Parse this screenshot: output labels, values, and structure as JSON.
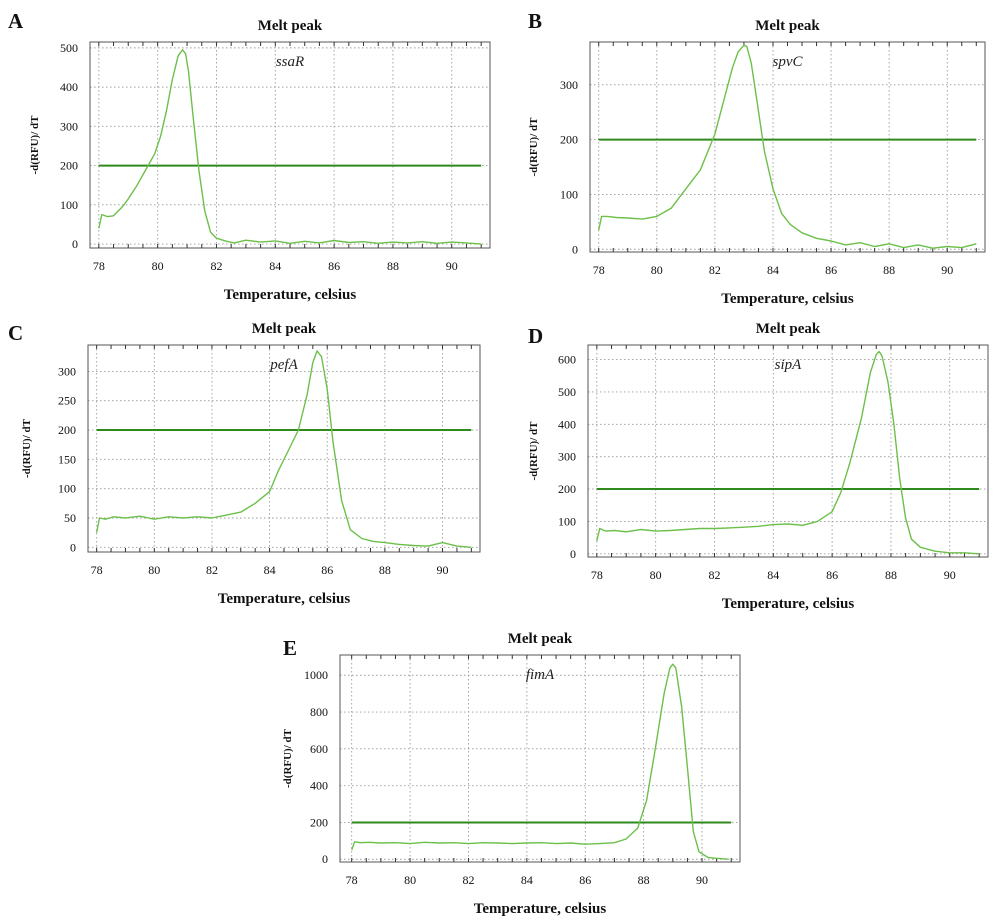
{
  "colors": {
    "melt_curve": "#6cc04a",
    "threshold": "#2f8a1e",
    "grid": "#9a9a9a",
    "frame": "#555555"
  },
  "chart_data": [
    {
      "panel": "A",
      "type": "line",
      "title": "Melt peak",
      "annotation": "ssaR",
      "xlabel": "Temperature, celsius",
      "ylabel": "-d(RFU)/ dT",
      "xlim": [
        77.7,
        91.3
      ],
      "ylim": [
        -10,
        515
      ],
      "xticks": [
        78,
        80,
        82,
        84,
        86,
        88,
        90
      ],
      "yticks": [
        0,
        100,
        200,
        300,
        400,
        500
      ],
      "grid": true,
      "threshold": 200,
      "x": [
        78.0,
        78.1,
        78.3,
        78.5,
        78.8,
        79.0,
        79.3,
        79.6,
        79.9,
        80.1,
        80.3,
        80.5,
        80.7,
        80.85,
        80.95,
        81.05,
        81.2,
        81.4,
        81.6,
        81.8,
        82.0,
        82.3,
        82.6,
        83.0,
        83.5,
        84.0,
        84.5,
        85.0,
        85.5,
        86.0,
        86.5,
        87.0,
        87.5,
        88.0,
        88.5,
        89.0,
        89.5,
        90.0,
        90.5,
        91.0
      ],
      "values": [
        40,
        75,
        70,
        72,
        95,
        115,
        150,
        190,
        230,
        275,
        340,
        420,
        480,
        495,
        485,
        440,
        330,
        190,
        85,
        30,
        15,
        8,
        3,
        10,
        5,
        8,
        2,
        7,
        3,
        9,
        4,
        6,
        2,
        5,
        3,
        6,
        2,
        5,
        3,
        0
      ]
    },
    {
      "panel": "B",
      "type": "line",
      "title": "Melt peak",
      "annotation": "spvC",
      "xlabel": "Temperature, celsius",
      "ylabel": "-d(RFU)/ dT",
      "xlim": [
        77.7,
        91.3
      ],
      "ylim": [
        -5,
        378
      ],
      "xticks": [
        78,
        80,
        82,
        84,
        86,
        88,
        90
      ],
      "yticks": [
        0,
        100,
        200,
        300
      ],
      "grid": true,
      "threshold": 200,
      "x": [
        78.0,
        78.1,
        78.3,
        78.6,
        79.0,
        79.5,
        80.0,
        80.5,
        81.0,
        81.5,
        82.0,
        82.3,
        82.6,
        82.8,
        83.0,
        83.1,
        83.25,
        83.45,
        83.7,
        84.0,
        84.3,
        84.6,
        85.0,
        85.5,
        86.0,
        86.5,
        87.0,
        87.5,
        88.0,
        88.5,
        89.0,
        89.5,
        90.0,
        90.5,
        91.0
      ],
      "values": [
        35,
        60,
        60,
        58,
        57,
        55,
        60,
        75,
        110,
        145,
        210,
        270,
        330,
        360,
        372,
        370,
        340,
        270,
        180,
        110,
        65,
        45,
        30,
        20,
        15,
        8,
        12,
        5,
        10,
        3,
        8,
        2,
        5,
        3,
        10
      ]
    },
    {
      "panel": "C",
      "type": "line",
      "title": "Melt peak",
      "annotation": "pefA",
      "xlabel": "Temperature, celsius",
      "ylabel": "-d(RFU)/ dT",
      "xlim": [
        77.7,
        91.3
      ],
      "ylim": [
        -8,
        345
      ],
      "xticks": [
        78,
        80,
        82,
        84,
        86,
        88,
        90
      ],
      "yticks": [
        0,
        50,
        100,
        150,
        200,
        250,
        300
      ],
      "grid": true,
      "threshold": 200,
      "x": [
        78.0,
        78.1,
        78.3,
        78.6,
        79.0,
        79.5,
        80.0,
        80.5,
        81.0,
        81.5,
        82.0,
        82.5,
        83.0,
        83.5,
        84.0,
        84.3,
        84.6,
        85.0,
        85.3,
        85.5,
        85.65,
        85.8,
        86.0,
        86.2,
        86.5,
        86.8,
        87.2,
        87.6,
        88.0,
        88.5,
        89.0,
        89.5,
        90.0,
        90.5,
        91.0
      ],
      "values": [
        25,
        50,
        48,
        52,
        50,
        53,
        48,
        52,
        50,
        52,
        50,
        55,
        60,
        75,
        95,
        130,
        160,
        200,
        260,
        315,
        335,
        325,
        270,
        180,
        80,
        30,
        15,
        10,
        8,
        5,
        3,
        2,
        8,
        2,
        0
      ]
    },
    {
      "panel": "D",
      "type": "line",
      "title": "Melt peak",
      "annotation": "sipA",
      "xlabel": "Temperature, celsius",
      "ylabel": "-d(RFU)/ dT",
      "xlim": [
        77.7,
        91.3
      ],
      "ylim": [
        -10,
        645
      ],
      "xticks": [
        78,
        80,
        82,
        84,
        86,
        88,
        90
      ],
      "yticks": [
        0,
        100,
        200,
        300,
        400,
        500,
        600
      ],
      "grid": true,
      "threshold": 200,
      "x": [
        78.0,
        78.1,
        78.3,
        78.6,
        79.0,
        79.5,
        80.0,
        80.5,
        81.0,
        81.5,
        82.0,
        82.5,
        83.0,
        83.5,
        84.0,
        84.5,
        85.0,
        85.5,
        86.0,
        86.3,
        86.6,
        87.0,
        87.3,
        87.5,
        87.6,
        87.7,
        87.9,
        88.1,
        88.3,
        88.5,
        88.7,
        89.0,
        89.5,
        90.0,
        90.5,
        91.0
      ],
      "values": [
        40,
        78,
        70,
        72,
        68,
        75,
        70,
        72,
        75,
        78,
        78,
        80,
        82,
        85,
        90,
        92,
        88,
        100,
        130,
        190,
        280,
        420,
        560,
        615,
        625,
        610,
        530,
        400,
        230,
        110,
        45,
        20,
        8,
        3,
        3,
        0
      ]
    },
    {
      "panel": "E",
      "type": "line",
      "title": "Melt peak",
      "annotation": "fimA",
      "xlabel": "Temperature, celsius",
      "ylabel": "-d(RFU)/ dT",
      "xlim": [
        77.6,
        91.3
      ],
      "ylim": [
        -15,
        1110
      ],
      "xticks": [
        78,
        80,
        82,
        84,
        86,
        88,
        90
      ],
      "yticks": [
        0,
        200,
        400,
        600,
        800,
        1000
      ],
      "grid": true,
      "threshold": 200,
      "x": [
        78.0,
        78.1,
        78.3,
        78.6,
        79.0,
        79.5,
        80.0,
        80.5,
        81.0,
        81.5,
        82.0,
        82.5,
        83.0,
        83.5,
        84.0,
        84.5,
        85.0,
        85.5,
        86.0,
        86.5,
        87.0,
        87.4,
        87.8,
        88.1,
        88.4,
        88.7,
        88.9,
        89.0,
        89.1,
        89.3,
        89.5,
        89.7,
        89.9,
        90.2,
        90.5,
        90.9
      ],
      "values": [
        50,
        95,
        90,
        92,
        88,
        90,
        85,
        92,
        88,
        90,
        85,
        90,
        88,
        85,
        88,
        90,
        85,
        88,
        82,
        85,
        90,
        110,
        170,
        320,
        600,
        900,
        1040,
        1060,
        1040,
        830,
        500,
        150,
        40,
        10,
        5,
        0
      ]
    }
  ]
}
